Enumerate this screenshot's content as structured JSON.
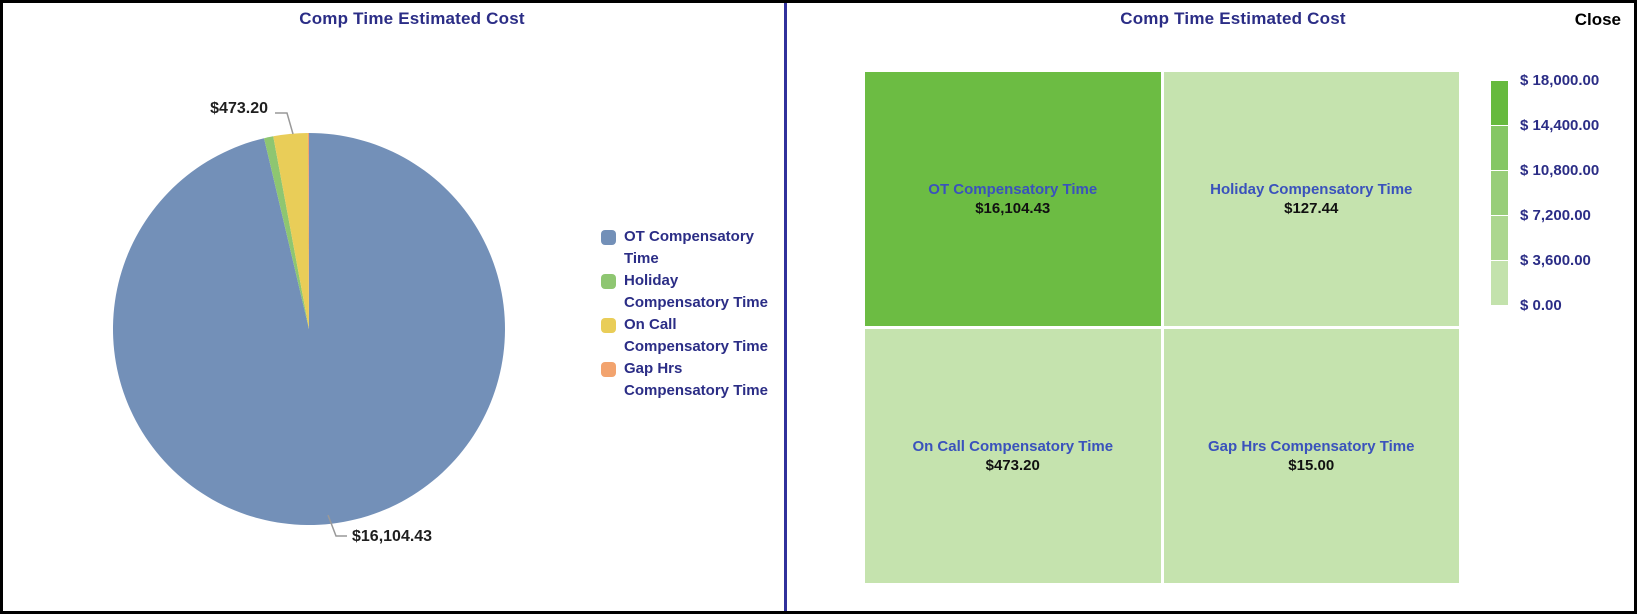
{
  "window": {
    "close_label": "Close"
  },
  "left_chart": {
    "title": "Comp Time Estimated Cost",
    "callout_top": "$473.20",
    "callout_bottom": "$16,104.43"
  },
  "right_chart": {
    "title": "Comp Time Estimated Cost"
  },
  "chart_data": [
    {
      "type": "pie",
      "title": "Comp Time Estimated Cost",
      "legend_position": "right",
      "start_angle_deg": 0,
      "direction": "clockwise",
      "series": [
        {
          "name": "OT Compensatory Time",
          "value": 16104.43,
          "color": "#7390b8"
        },
        {
          "name": "Holiday Compensatory Time",
          "value": 127.44,
          "color": "#8ec671"
        },
        {
          "name": "On Call Compensatory Time",
          "value": 473.2,
          "color": "#e9cd58"
        },
        {
          "name": "Gap Hrs Compensatory Time",
          "value": 15.0,
          "color": "#f2a36e"
        }
      ],
      "visible_labels": [
        "$473.20",
        "$16,104.43"
      ]
    },
    {
      "type": "heatmap",
      "title": "Comp Time Estimated Cost",
      "cells": [
        {
          "name": "OT Compensatory Time",
          "value": 16104.43,
          "value_label": "$16,104.43",
          "color": "#6cbc43"
        },
        {
          "name": "Holiday Compensatory Time",
          "value": 127.44,
          "value_label": "$127.44",
          "color": "#c5e3ae"
        },
        {
          "name": "On Call Compensatory Time",
          "value": 473.2,
          "value_label": "$473.20",
          "color": "#c5e3ae"
        },
        {
          "name": "Gap Hrs Compensatory Time",
          "value": 15.0,
          "value_label": "$15.00",
          "color": "#c5e3ae"
        }
      ],
      "color_scale": {
        "tick_labels": [
          "$ 18,000.00",
          "$ 14,400.00",
          "$ 10,800.00",
          "$ 7,200.00",
          "$ 3,600.00",
          "$ 0.00"
        ],
        "tick_values": [
          18000,
          14400,
          10800,
          7200,
          3600,
          0
        ],
        "colors_top_to_bottom": [
          "#66ba3e",
          "#85c764",
          "#98ce79",
          "#acd78f",
          "#c3e2ac"
        ]
      }
    }
  ],
  "colors": {
    "title_text": "#2b2d86",
    "cell_name_text": "#3a52bc",
    "divider": "#31319b",
    "frame_border": "#000000",
    "leader_line": "#999999"
  }
}
